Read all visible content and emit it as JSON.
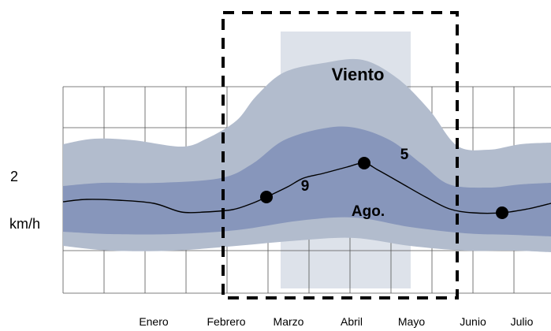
{
  "chart_data": {
    "type": "area",
    "title": "",
    "xlabel": "",
    "ylabel_values": [
      "2",
      "km/h"
    ],
    "x_tick_labels": [
      "Enero",
      "Febrero",
      "Marzo",
      "Abril",
      "Mayo",
      "Junio",
      "Julio"
    ],
    "annotations": [
      "Viento",
      "9",
      "5",
      "Ago."
    ],
    "series": [
      {
        "name": "",
        "values": []
      }
    ],
    "highlight_box": {
      "style": "dashed"
    },
    "colors": {
      "outer_band": "#b2bccd",
      "inner_band": "#8796bb",
      "shade_rect": "#dde2ea",
      "grid": "#555555",
      "line": "#000000",
      "marker": "#000000",
      "dashed_box": "#000000"
    }
  }
}
